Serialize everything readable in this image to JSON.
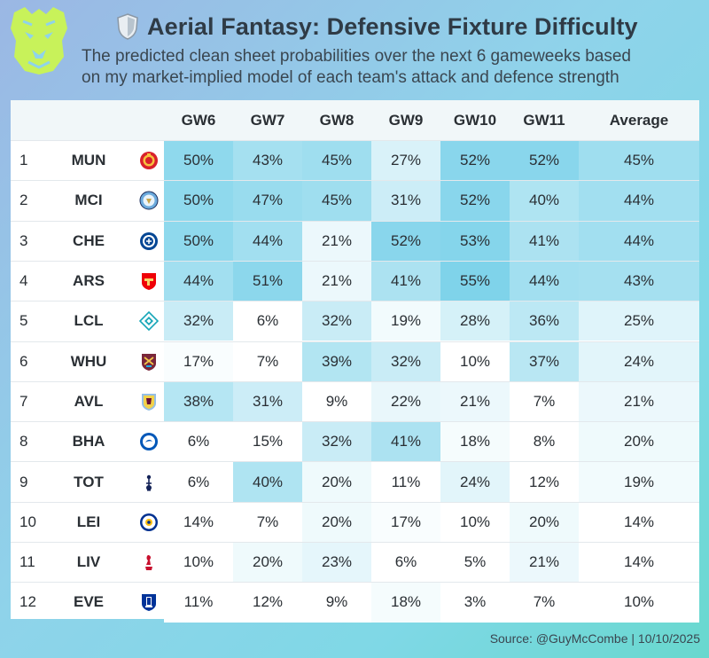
{
  "header": {
    "title": "Aerial Fantasy: Defensive Fixture Difficulty",
    "subtitle_line1": "The predicted clean sheet probabilities over the next 6 gameweeks based",
    "subtitle_line2": "on my market-implied model of each team's attack and defence strength",
    "logo_icon": "lion-head-logo",
    "title_icon": "shield-icon"
  },
  "table": {
    "columns": [
      "",
      "",
      "",
      "GW6",
      "GW7",
      "GW8",
      "GW9",
      "GW10",
      "GW11",
      "Average"
    ],
    "rows": [
      {
        "rank": "1",
        "team": "MUN",
        "badge": "man-utd-crest-icon",
        "values": [
          "50%",
          "43%",
          "45%",
          "27%",
          "52%",
          "52%"
        ],
        "average": "45%"
      },
      {
        "rank": "2",
        "team": "MCI",
        "badge": "man-city-crest-icon",
        "values": [
          "50%",
          "47%",
          "45%",
          "31%",
          "52%",
          "40%"
        ],
        "average": "44%"
      },
      {
        "rank": "3",
        "team": "CHE",
        "badge": "chelsea-crest-icon",
        "values": [
          "50%",
          "44%",
          "21%",
          "52%",
          "53%",
          "41%"
        ],
        "average": "44%"
      },
      {
        "rank": "4",
        "team": "ARS",
        "badge": "arsenal-crest-icon",
        "values": [
          "44%",
          "51%",
          "21%",
          "41%",
          "55%",
          "44%"
        ],
        "average": "43%"
      },
      {
        "rank": "5",
        "team": "LCL",
        "badge": "lcl-crest-icon",
        "values": [
          "32%",
          "6%",
          "32%",
          "19%",
          "28%",
          "36%"
        ],
        "average": "25%"
      },
      {
        "rank": "6",
        "team": "WHU",
        "badge": "west-ham-crest-icon",
        "values": [
          "17%",
          "7%",
          "39%",
          "32%",
          "10%",
          "37%"
        ],
        "average": "24%"
      },
      {
        "rank": "7",
        "team": "AVL",
        "badge": "aston-villa-crest-icon",
        "values": [
          "38%",
          "31%",
          "9%",
          "22%",
          "21%",
          "7%"
        ],
        "average": "21%"
      },
      {
        "rank": "8",
        "team": "BHA",
        "badge": "brighton-crest-icon",
        "values": [
          "6%",
          "15%",
          "32%",
          "41%",
          "18%",
          "8%"
        ],
        "average": "20%"
      },
      {
        "rank": "9",
        "team": "TOT",
        "badge": "tottenham-crest-icon",
        "values": [
          "6%",
          "40%",
          "20%",
          "11%",
          "24%",
          "12%"
        ],
        "average": "19%"
      },
      {
        "rank": "10",
        "team": "LEI",
        "badge": "leicester-crest-icon",
        "values": [
          "14%",
          "7%",
          "20%",
          "17%",
          "10%",
          "20%"
        ],
        "average": "14%"
      },
      {
        "rank": "11",
        "team": "LIV",
        "badge": "liverpool-crest-icon",
        "values": [
          "10%",
          "20%",
          "23%",
          "6%",
          "5%",
          "21%"
        ],
        "average": "14%"
      },
      {
        "rank": "12",
        "team": "EVE",
        "badge": "everton-crest-icon",
        "values": [
          "11%",
          "12%",
          "9%",
          "18%",
          "3%",
          "7%"
        ],
        "average": "10%"
      }
    ]
  },
  "source": "Source: @GuyMcCombe | 10/10/2025",
  "colors": {
    "heat_high": "#7fd3ea",
    "heat_low": "#ffffff",
    "title_text": "#2f3b46",
    "logo_green": "#c8f25a"
  }
}
